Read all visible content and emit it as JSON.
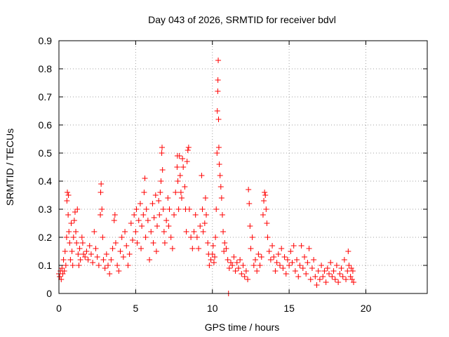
{
  "chart_data": {
    "type": "scatter",
    "title": "Day 043 of 2026, SRMTID for receiver bdvl",
    "xlabel": "GPS time / hours",
    "ylabel": "SRMTID / TECUs",
    "xlim": [
      0,
      24
    ],
    "ylim": [
      0,
      0.9
    ],
    "x_ticks": [
      0,
      5,
      10,
      15,
      20
    ],
    "x_tick_labels": [
      "0",
      "5",
      "10",
      "15",
      "20"
    ],
    "y_ticks": [
      0,
      0.1,
      0.2,
      0.3,
      0.4,
      0.5,
      0.6,
      0.7,
      0.8,
      0.9
    ],
    "y_tick_labels": [
      "0",
      "0.1",
      "0.2",
      "0.3",
      "0.4",
      "0.5",
      "0.6",
      "0.7",
      "0.8",
      "0.9"
    ],
    "grid": true,
    "marker": "+",
    "marker_color": "#ff0000",
    "series": [
      {
        "name": "SRMTID",
        "points": [
          [
            0.0,
            0.07
          ],
          [
            0.05,
            0.06
          ],
          [
            0.1,
            0.08
          ],
          [
            0.15,
            0.05
          ],
          [
            0.2,
            0.09
          ],
          [
            0.25,
            0.07
          ],
          [
            0.3,
            0.12
          ],
          [
            0.35,
            0.08
          ],
          [
            0.4,
            0.15
          ],
          [
            0.45,
            0.1
          ],
          [
            0.5,
            0.2
          ],
          [
            0.52,
            0.33
          ],
          [
            0.55,
            0.36
          ],
          [
            0.6,
            0.28
          ],
          [
            0.62,
            0.35
          ],
          [
            0.65,
            0.22
          ],
          [
            0.7,
            0.18
          ],
          [
            0.75,
            0.12
          ],
          [
            0.8,
            0.25
          ],
          [
            0.85,
            0.15
          ],
          [
            0.9,
            0.1
          ],
          [
            0.95,
            0.2
          ],
          [
            1.0,
            0.26
          ],
          [
            1.05,
            0.29
          ],
          [
            1.1,
            0.22
          ],
          [
            1.15,
            0.18
          ],
          [
            1.2,
            0.3
          ],
          [
            1.25,
            0.14
          ],
          [
            1.3,
            0.1
          ],
          [
            1.35,
            0.16
          ],
          [
            1.4,
            0.12
          ],
          [
            1.5,
            0.2
          ],
          [
            1.55,
            0.18
          ],
          [
            1.6,
            0.14
          ],
          [
            1.7,
            0.13
          ],
          [
            1.8,
            0.15
          ],
          [
            1.9,
            0.12
          ],
          [
            2.0,
            0.17
          ],
          [
            2.1,
            0.14
          ],
          [
            2.2,
            0.11
          ],
          [
            2.3,
            0.22
          ],
          [
            2.4,
            0.16
          ],
          [
            2.5,
            0.13
          ],
          [
            2.6,
            0.1
          ],
          [
            2.7,
            0.28
          ],
          [
            2.72,
            0.36
          ],
          [
            2.75,
            0.39
          ],
          [
            2.8,
            0.3
          ],
          [
            2.85,
            0.2
          ],
          [
            2.9,
            0.12
          ],
          [
            3.0,
            0.09
          ],
          [
            3.1,
            0.14
          ],
          [
            3.2,
            0.1
          ],
          [
            3.3,
            0.07
          ],
          [
            3.4,
            0.12
          ],
          [
            3.5,
            0.16
          ],
          [
            3.6,
            0.26
          ],
          [
            3.65,
            0.28
          ],
          [
            3.7,
            0.18
          ],
          [
            3.8,
            0.1
          ],
          [
            3.9,
            0.08
          ],
          [
            4.0,
            0.15
          ],
          [
            4.1,
            0.2
          ],
          [
            4.2,
            0.13
          ],
          [
            4.3,
            0.22
          ],
          [
            4.4,
            0.17
          ],
          [
            4.5,
            0.1
          ],
          [
            4.6,
            0.14
          ],
          [
            4.7,
            0.25
          ],
          [
            4.8,
            0.19
          ],
          [
            4.9,
            0.28
          ],
          [
            5.0,
            0.22
          ],
          [
            5.05,
            0.3
          ],
          [
            5.1,
            0.18
          ],
          [
            5.2,
            0.26
          ],
          [
            5.3,
            0.32
          ],
          [
            5.35,
            0.16
          ],
          [
            5.4,
            0.24
          ],
          [
            5.5,
            0.28
          ],
          [
            5.55,
            0.36
          ],
          [
            5.6,
            0.41
          ],
          [
            5.65,
            0.2
          ],
          [
            5.7,
            0.3
          ],
          [
            5.8,
            0.26
          ],
          [
            5.9,
            0.12
          ],
          [
            6.0,
            0.22
          ],
          [
            6.1,
            0.32
          ],
          [
            6.15,
            0.18
          ],
          [
            6.2,
            0.27
          ],
          [
            6.3,
            0.35
          ],
          [
            6.35,
            0.15
          ],
          [
            6.4,
            0.24
          ],
          [
            6.5,
            0.33
          ],
          [
            6.55,
            0.28
          ],
          [
            6.6,
            0.36
          ],
          [
            6.65,
            0.4
          ],
          [
            6.7,
            0.5
          ],
          [
            6.72,
            0.52
          ],
          [
            6.75,
            0.44
          ],
          [
            6.8,
            0.3
          ],
          [
            6.85,
            0.22
          ],
          [
            6.9,
            0.18
          ],
          [
            7.0,
            0.26
          ],
          [
            7.1,
            0.34
          ],
          [
            7.15,
            0.24
          ],
          [
            7.2,
            0.3
          ],
          [
            7.3,
            0.2
          ],
          [
            7.4,
            0.16
          ],
          [
            7.5,
            0.28
          ],
          [
            7.6,
            0.36
          ],
          [
            7.7,
            0.45
          ],
          [
            7.72,
            0.49
          ],
          [
            7.75,
            0.4
          ],
          [
            7.8,
            0.3
          ],
          [
            7.85,
            0.49
          ],
          [
            7.9,
            0.42
          ],
          [
            7.95,
            0.36
          ],
          [
            8.0,
            0.34
          ],
          [
            8.05,
            0.48
          ],
          [
            8.1,
            0.45
          ],
          [
            8.2,
            0.38
          ],
          [
            8.25,
            0.3
          ],
          [
            8.3,
            0.22
          ],
          [
            8.35,
            0.47
          ],
          [
            8.4,
            0.51
          ],
          [
            8.45,
            0.52
          ],
          [
            8.5,
            0.3
          ],
          [
            8.6,
            0.2
          ],
          [
            8.7,
            0.16
          ],
          [
            8.8,
            0.22
          ],
          [
            8.9,
            0.28
          ],
          [
            9.0,
            0.2
          ],
          [
            9.1,
            0.16
          ],
          [
            9.2,
            0.24
          ],
          [
            9.3,
            0.42
          ],
          [
            9.35,
            0.3
          ],
          [
            9.4,
            0.22
          ],
          [
            9.5,
            0.25
          ],
          [
            9.55,
            0.34
          ],
          [
            9.6,
            0.28
          ],
          [
            9.7,
            0.18
          ],
          [
            9.75,
            0.14
          ],
          [
            9.8,
            0.1
          ],
          [
            9.9,
            0.12
          ],
          [
            10.0,
            0.14
          ],
          [
            10.05,
            0.17
          ],
          [
            10.1,
            0.11
          ],
          [
            10.15,
            0.13
          ],
          [
            10.2,
            0.2
          ],
          [
            10.25,
            0.3
          ],
          [
            10.3,
            0.5
          ],
          [
            10.32,
            0.65
          ],
          [
            10.35,
            0.72
          ],
          [
            10.36,
            0.76
          ],
          [
            10.38,
            0.83
          ],
          [
            10.4,
            0.62
          ],
          [
            10.42,
            0.52
          ],
          [
            10.45,
            0.46
          ],
          [
            10.5,
            0.42
          ],
          [
            10.55,
            0.38
          ],
          [
            10.6,
            0.34
          ],
          [
            10.65,
            0.28
          ],
          [
            10.7,
            0.22
          ],
          [
            10.75,
            0.15
          ],
          [
            10.8,
            0.18
          ],
          [
            10.9,
            0.16
          ],
          [
            11.0,
            0.12
          ],
          [
            11.05,
            0.0
          ],
          [
            11.1,
            0.09
          ],
          [
            11.2,
            0.11
          ],
          [
            11.3,
            0.1
          ],
          [
            11.4,
            0.13
          ],
          [
            11.5,
            0.08
          ],
          [
            11.6,
            0.11
          ],
          [
            11.7,
            0.09
          ],
          [
            11.8,
            0.12
          ],
          [
            11.9,
            0.07
          ],
          [
            12.0,
            0.1
          ],
          [
            12.1,
            0.06
          ],
          [
            12.2,
            0.08
          ],
          [
            12.3,
            0.05
          ],
          [
            12.35,
            0.37
          ],
          [
            12.4,
            0.32
          ],
          [
            12.45,
            0.24
          ],
          [
            12.5,
            0.16
          ],
          [
            12.6,
            0.2
          ],
          [
            12.7,
            0.1
          ],
          [
            12.8,
            0.12
          ],
          [
            12.9,
            0.08
          ],
          [
            13.0,
            0.14
          ],
          [
            13.1,
            0.1
          ],
          [
            13.2,
            0.13
          ],
          [
            13.3,
            0.28
          ],
          [
            13.35,
            0.33
          ],
          [
            13.4,
            0.36
          ],
          [
            13.45,
            0.35
          ],
          [
            13.5,
            0.3
          ],
          [
            13.55,
            0.25
          ],
          [
            13.6,
            0.2
          ],
          [
            13.7,
            0.15
          ],
          [
            13.8,
            0.12
          ],
          [
            13.9,
            0.17
          ],
          [
            14.0,
            0.13
          ],
          [
            14.1,
            0.08
          ],
          [
            14.2,
            0.11
          ],
          [
            14.3,
            0.14
          ],
          [
            14.4,
            0.1
          ],
          [
            14.5,
            0.16
          ],
          [
            14.6,
            0.09
          ],
          [
            14.7,
            0.13
          ],
          [
            14.8,
            0.07
          ],
          [
            14.9,
            0.12
          ],
          [
            15.0,
            0.1
          ],
          [
            15.1,
            0.15
          ],
          [
            15.2,
            0.11
          ],
          [
            15.3,
            0.17
          ],
          [
            15.4,
            0.08
          ],
          [
            15.5,
            0.12
          ],
          [
            15.6,
            0.06
          ],
          [
            15.7,
            0.1
          ],
          [
            15.8,
            0.17
          ],
          [
            15.9,
            0.09
          ],
          [
            16.0,
            0.13
          ],
          [
            16.1,
            0.07
          ],
          [
            16.2,
            0.11
          ],
          [
            16.3,
            0.16
          ],
          [
            16.4,
            0.05
          ],
          [
            16.5,
            0.09
          ],
          [
            16.6,
            0.12
          ],
          [
            16.7,
            0.06
          ],
          [
            16.8,
            0.03
          ],
          [
            16.9,
            0.08
          ],
          [
            17.0,
            0.05
          ],
          [
            17.1,
            0.1
          ],
          [
            17.2,
            0.06
          ],
          [
            17.3,
            0.08
          ],
          [
            17.4,
            0.04
          ],
          [
            17.5,
            0.09
          ],
          [
            17.6,
            0.07
          ],
          [
            17.7,
            0.11
          ],
          [
            17.8,
            0.06
          ],
          [
            17.9,
            0.08
          ],
          [
            18.0,
            0.05
          ],
          [
            18.1,
            0.1
          ],
          [
            18.2,
            0.04
          ],
          [
            18.3,
            0.07
          ],
          [
            18.4,
            0.09
          ],
          [
            18.5,
            0.06
          ],
          [
            18.6,
            0.12
          ],
          [
            18.7,
            0.05
          ],
          [
            18.8,
            0.08
          ],
          [
            18.85,
            0.15
          ],
          [
            18.9,
            0.1
          ],
          [
            19.0,
            0.06
          ],
          [
            19.05,
            0.09
          ],
          [
            19.1,
            0.05
          ],
          [
            19.15,
            0.08
          ],
          [
            19.2,
            0.04
          ]
        ]
      }
    ]
  }
}
